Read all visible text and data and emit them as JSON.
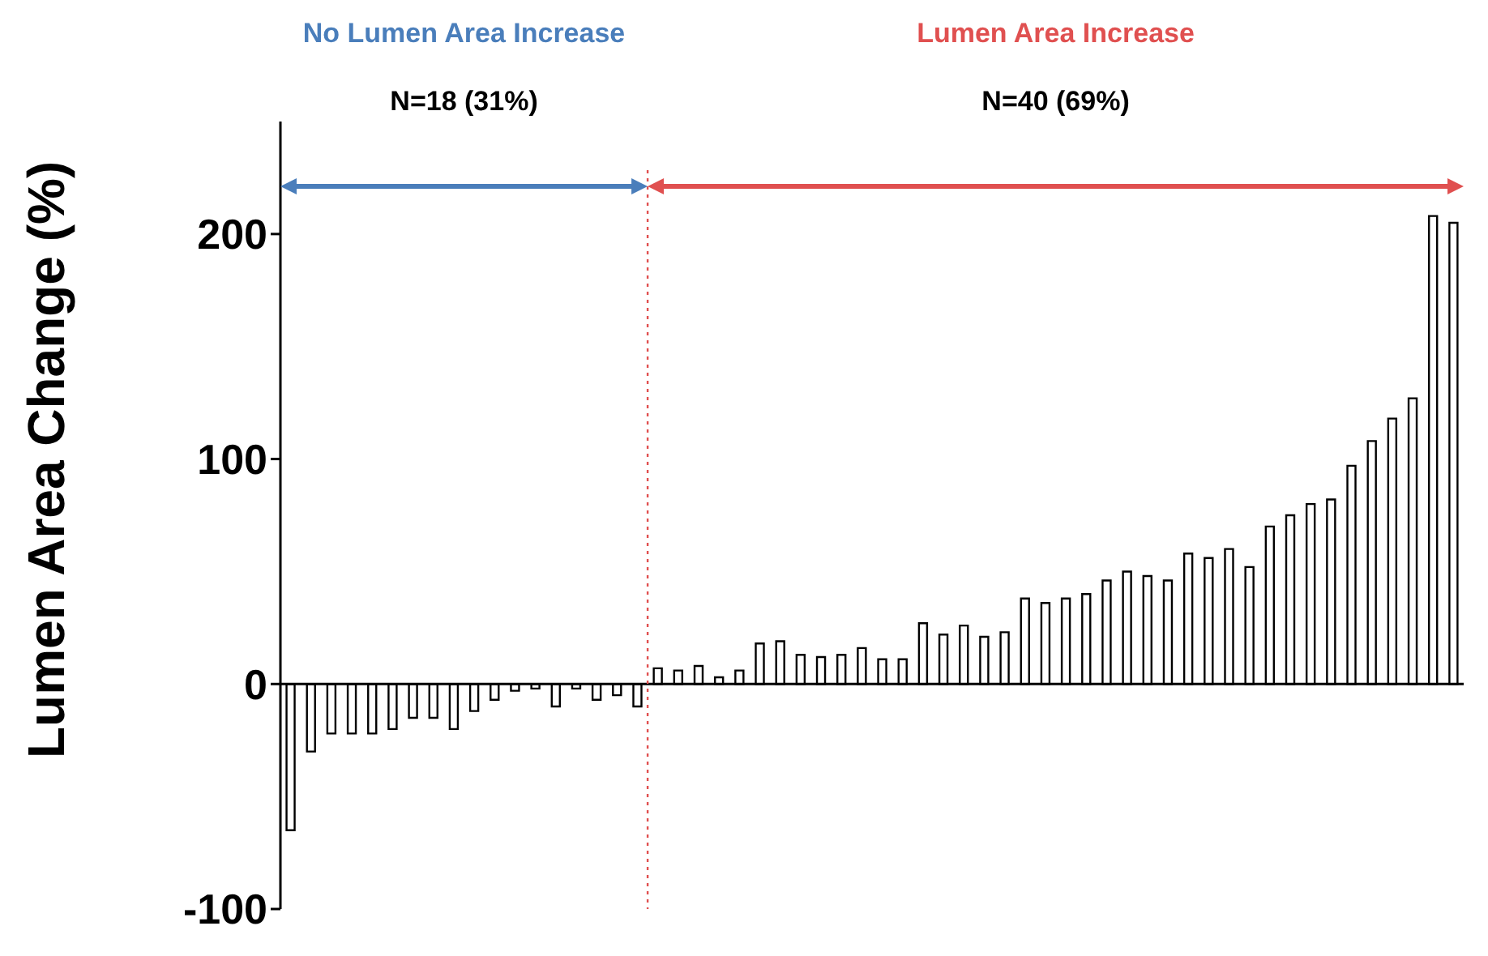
{
  "chart_data": {
    "type": "bar",
    "ylabel": "Lumen Area Change (%)",
    "categories": [
      null,
      null,
      null,
      null,
      null,
      null,
      null,
      null,
      null,
      null,
      null,
      null,
      null,
      null,
      null,
      null,
      null,
      null,
      null,
      null,
      null,
      null,
      null,
      null,
      null,
      null,
      null,
      null,
      null,
      null,
      null,
      null,
      null,
      null,
      null,
      null,
      null,
      null,
      null,
      null,
      null,
      null,
      null,
      null,
      null,
      null,
      null,
      null,
      null,
      null,
      null,
      null,
      null,
      null,
      null,
      null,
      null,
      null
    ],
    "values": [
      -65,
      -30,
      -22,
      -22,
      -22,
      -20,
      -15,
      -15,
      -20,
      -12,
      -7,
      -3,
      -2,
      -10,
      -2,
      -7,
      -5,
      -10,
      7,
      6,
      8,
      3,
      6,
      18,
      19,
      13,
      12,
      13,
      16,
      11,
      11,
      27,
      22,
      26,
      21,
      23,
      38,
      36,
      38,
      40,
      46,
      50,
      48,
      46,
      58,
      56,
      60,
      52,
      70,
      75,
      80,
      82,
      97,
      108,
      118,
      127,
      208,
      205
    ],
    "color": "#ffffff",
    "ylim": [
      -100,
      250
    ],
    "yticks": [
      -100,
      0,
      100,
      200
    ],
    "tick_labels": "y",
    "grid": false,
    "annotations": [
      "No Lumen Area Increase",
      "Lumen Area Increase",
      "N=18 (31%)",
      "N=40 (69%)"
    ]
  }
}
